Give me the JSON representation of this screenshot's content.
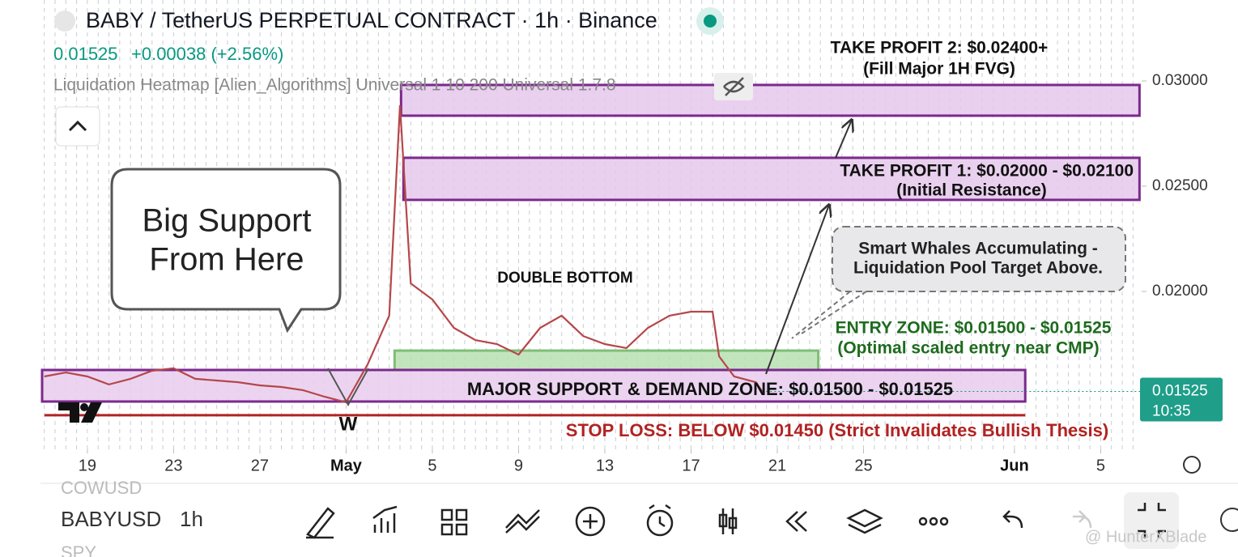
{
  "header": {
    "title": "BABY / TetherUS PERPETUAL CONTRACT · 1h · Binance",
    "price": "0.01525",
    "change": "+0.00038 (+2.56%)",
    "indicator": "Liquidation Heatmap [Alien_Algorithms] Universal 1 10 200 Universal 1.7.8"
  },
  "chart_data": {
    "type": "line",
    "color": "#b5474a",
    "x": [
      107,
      108,
      109,
      110,
      111,
      112,
      113,
      114,
      115,
      116,
      117,
      118,
      119,
      120,
      121,
      122,
      123,
      123.5,
      124,
      125,
      126,
      127,
      128,
      129,
      130,
      131,
      132,
      133,
      134,
      135,
      136,
      137,
      138,
      138.3,
      139,
      140,
      140.3
    ],
    "values": [
      0.01596,
      0.01615,
      0.01596,
      0.01558,
      0.01585,
      0.01623,
      0.01635,
      0.01585,
      0.01577,
      0.01569,
      0.01554,
      0.01546,
      0.01531,
      0.015,
      0.01473,
      0.01654,
      0.01885,
      0.02885,
      0.02038,
      0.01962,
      0.01827,
      0.01769,
      0.0175,
      0.017,
      0.01827,
      0.01885,
      0.01788,
      0.0175,
      0.01731,
      0.01827,
      0.01885,
      0.01904,
      0.01904,
      0.01692,
      0.01596,
      0.01569,
      0.01525
    ],
    "xlim": [
      106.9,
      157.9
    ],
    "xticks": [
      {
        "value": 109,
        "label": "19"
      },
      {
        "value": 113,
        "label": "23"
      },
      {
        "value": 117,
        "label": "27"
      },
      {
        "value": 121,
        "label": "May"
      },
      {
        "value": 125,
        "label": "5"
      },
      {
        "value": 129,
        "label": "9"
      },
      {
        "value": 133,
        "label": "13"
      },
      {
        "value": 137,
        "label": "17"
      },
      {
        "value": 141,
        "label": "21"
      },
      {
        "value": 145,
        "label": "25"
      },
      {
        "value": 152,
        "label": "Jun"
      },
      {
        "value": 156,
        "label": "5"
      }
    ],
    "ylim": [
      0.012692,
      0.033846
    ],
    "yticks": [
      {
        "value": 0.02,
        "label": "0.02000"
      },
      {
        "value": 0.025,
        "label": "0.02500"
      },
      {
        "value": 0.03,
        "label": "0.03000"
      }
    ],
    "current_price": {
      "value": 0.01525,
      "label": "0.01525",
      "time": "10:35"
    },
    "zones": [
      {
        "name": "take-profit-2",
        "low": 0.02835,
        "high": 0.02981,
        "start": 123.55,
        "end": 157.8,
        "color": "#e6c8ec",
        "border": "#7b2a8c",
        "lines": [
          "TAKE PROFIT 2: $0.02400+",
          "(Fill Major 1H FVG)"
        ]
      },
      {
        "name": "take-profit-1",
        "low": 0.02435,
        "high": 0.02635,
        "start": 123.66,
        "end": 157.8,
        "color": "#e6c8ec",
        "border": "#7b2a8c",
        "lines": [
          "TAKE PROFIT 1: $0.02000 - $0.02100",
          "(Initial Resistance)"
        ]
      },
      {
        "name": "entry-zone",
        "low": 0.01627,
        "high": 0.01719,
        "start": 123.25,
        "end": 142.9,
        "color": "#b9e0b2",
        "border": "#7fbf76",
        "lines": [
          "ENTRY ZONE: $0.01500 - $0.01525",
          "(Optimal scaled entry near CMP)"
        ]
      },
      {
        "name": "major-support",
        "low": 0.01477,
        "high": 0.01627,
        "start": 106.9,
        "end": 152.5,
        "color": "#e9cdef",
        "border": "#7b2a8c",
        "lines": [
          "MAJOR SUPPORT  & DEMAND ZONE: $0.01500 - $0.01525"
        ]
      }
    ],
    "stop_loss": {
      "value": 0.01412,
      "label": "STOP LOSS: BELOW $0.01450 (Strict Invalidates Bullish Thesis)"
    },
    "annotations": {
      "pattern": "DOUBLE BOTTOM",
      "w": "W",
      "bubble": [
        "Big Support",
        "From Here"
      ],
      "callout": [
        "Smart Whales Accumulating -",
        "Liquidation Pool Target Above."
      ]
    }
  },
  "toolbar": {
    "symbol_above": "COWUSD",
    "symbol": "BABYUSD",
    "interval": "1h",
    "symbol_below": "SPY",
    "watermark": "@ HunterXBlade"
  }
}
